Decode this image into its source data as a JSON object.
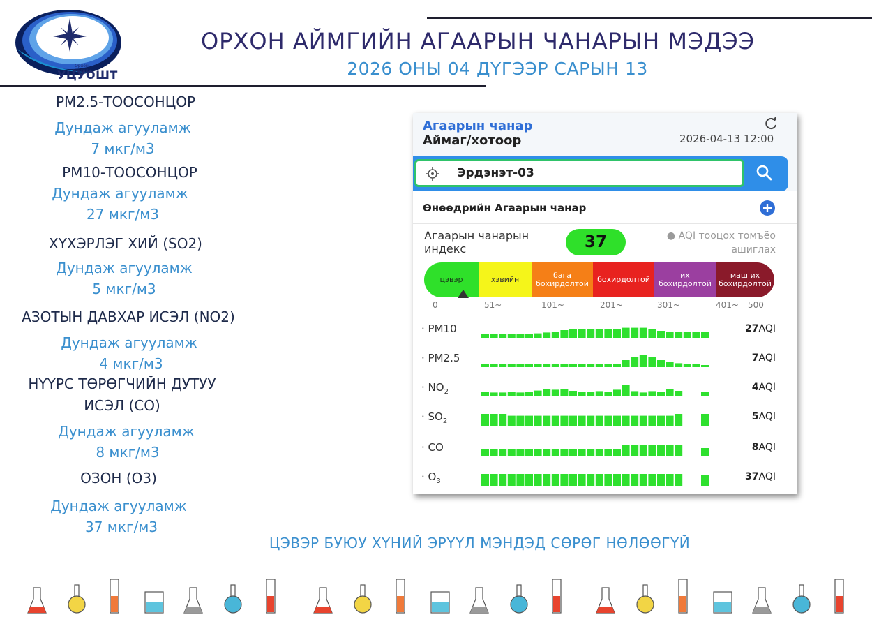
{
  "header": {
    "logo_org": "Орхон аймгийн",
    "logo_name": "УЦУОШТ",
    "title": "ОРХОН АЙМГИЙН АГААРЫН ЧАНАРЫН МЭДЭЭ",
    "date_line": "2026 ОНЫ 04 ДҮГЭЭР САРЫН 13"
  },
  "pollutants": [
    {
      "name": "PM2.5-ТООСОНЦОР",
      "label": "Дундаж агууламж",
      "value": "7 мкг/м3"
    },
    {
      "name": "PM10-ТООСОНЦОР",
      "label": "Дундаж агууламж",
      "value": "27 мкг/м3"
    },
    {
      "name": "ХҮХЭРЛЭГ ХИЙ (SO2)",
      "label": "Дундаж агууламж",
      "value": "5 мкг/м3"
    },
    {
      "name": "АЗОТЫН ДАВХАР ИСЭЛ (NO2)",
      "label": "Дундаж агууламж",
      "value": "4 мкг/м3"
    },
    {
      "name": "НҮҮРС ТӨРӨГЧИЙН ДУТУУ",
      "name2": "ИСЭЛ (CO)",
      "label": "Дундаж агууламж",
      "value": "8 мкг/м3"
    },
    {
      "name": "ОЗОН (O3)",
      "label": "Дундаж агууламж",
      "value": "37 мкг/м3"
    }
  ],
  "app": {
    "title": "Агаарын чанар",
    "subtitle": "Аймаг/хотоор",
    "datetime": "2026-04-13 12:00",
    "search_value": "Эрдэнэт-03",
    "today_label": "Өнөөдрийн Агаарын чанар",
    "aqi_label": "Агаарын чанарын индекс",
    "aqi_value": "37",
    "aqi_note_1": "● AQI тооцох томъёо",
    "aqi_note_2": "ашиглах",
    "scale": [
      {
        "label": "цэвэр",
        "color": "#2fe02a",
        "text_color": "#1a3a1a"
      },
      {
        "label": "хэвийн",
        "color": "#f5f51a",
        "text_color": "#333333"
      },
      {
        "label": "бага бохирдолтой",
        "color": "#f57f17",
        "text_color": "#ffffff"
      },
      {
        "label": "бохирдолтой",
        "color": "#e8221f",
        "text_color": "#ffffff"
      },
      {
        "label": "их бохирдолтой",
        "color": "#9b3fa0",
        "text_color": "#ffffff"
      },
      {
        "label": "маш их бохирдолтой",
        "color": "#8a1a2a",
        "text_color": "#ffffff"
      }
    ],
    "scale_ticks": [
      "0",
      "51~",
      "101~",
      "201~",
      "301~",
      "401~",
      "500"
    ],
    "marker_value": 37,
    "bar_color": "#2ee02e",
    "rows": [
      {
        "name": "PM10",
        "sub": "",
        "value": "27",
        "unit": "AQI",
        "levels": [
          0.28,
          0.28,
          0.28,
          0.28,
          0.28,
          0.28,
          0.32,
          0.38,
          0.45,
          0.55,
          0.62,
          0.65,
          0.65,
          0.65,
          0.65,
          0.65,
          0.72,
          0.72,
          0.72,
          0.62,
          0.5,
          0.45,
          0.45,
          0.45,
          0.45,
          0.45
        ]
      },
      {
        "name": "PM2.5",
        "sub": "",
        "value": "7",
        "unit": "AQI",
        "levels": [
          0.2,
          0.2,
          0.2,
          0.2,
          0.2,
          0.2,
          0.2,
          0.2,
          0.2,
          0.2,
          0.2,
          0.2,
          0.2,
          0.2,
          0.2,
          0.2,
          0.5,
          0.75,
          0.9,
          0.75,
          0.5,
          0.35,
          0.28,
          0.22,
          0.2,
          0.15
        ]
      },
      {
        "name": "NO",
        "sub": "2",
        "value": "4",
        "unit": "AQI",
        "levels": [
          0.32,
          0.28,
          0.28,
          0.32,
          0.28,
          0.32,
          0.42,
          0.5,
          0.48,
          0.52,
          0.4,
          0.3,
          0.32,
          0.38,
          0.32,
          0.48,
          0.8,
          0.38,
          0.28,
          0.38,
          0.3,
          0.5,
          0.4,
          0,
          0,
          0.3
        ]
      },
      {
        "name": "SO",
        "sub": "2",
        "value": "5",
        "unit": "AQI",
        "levels": [
          0.85,
          0.85,
          0.85,
          0.72,
          0.72,
          0.72,
          0.72,
          0.72,
          0.72,
          0.72,
          0.72,
          0.72,
          0.72,
          0.72,
          0.72,
          0.72,
          0.72,
          0.72,
          0.72,
          0.72,
          0.72,
          0.72,
          0.85,
          0,
          0,
          0.85
        ]
      },
      {
        "name": "CO",
        "sub": "",
        "value": "8",
        "unit": "AQI",
        "levels": [
          0.55,
          0.55,
          0.55,
          0.55,
          0.55,
          0.55,
          0.55,
          0.55,
          0.55,
          0.55,
          0.55,
          0.55,
          0.55,
          0.55,
          0.55,
          0.55,
          0.82,
          0.82,
          0.82,
          0.82,
          0.82,
          0.82,
          0.82,
          0,
          0,
          0.6
        ]
      },
      {
        "name": "O",
        "sub": "3",
        "value": "37",
        "unit": "AQI",
        "levels": [
          0.85,
          0.85,
          0.85,
          0.85,
          0.85,
          0.85,
          0.85,
          0.85,
          0.85,
          0.85,
          0.85,
          0.85,
          0.85,
          0.85,
          0.85,
          0.85,
          0.85,
          0.85,
          0.85,
          0.85,
          0.85,
          0.85,
          0.85,
          0,
          0,
          0.8
        ]
      }
    ]
  },
  "footer": "ЦЭВЭР БУЮУ ХҮНИЙ ЭРҮҮЛ МЭНДЭД СӨРӨГ НӨЛӨӨГҮЙ"
}
